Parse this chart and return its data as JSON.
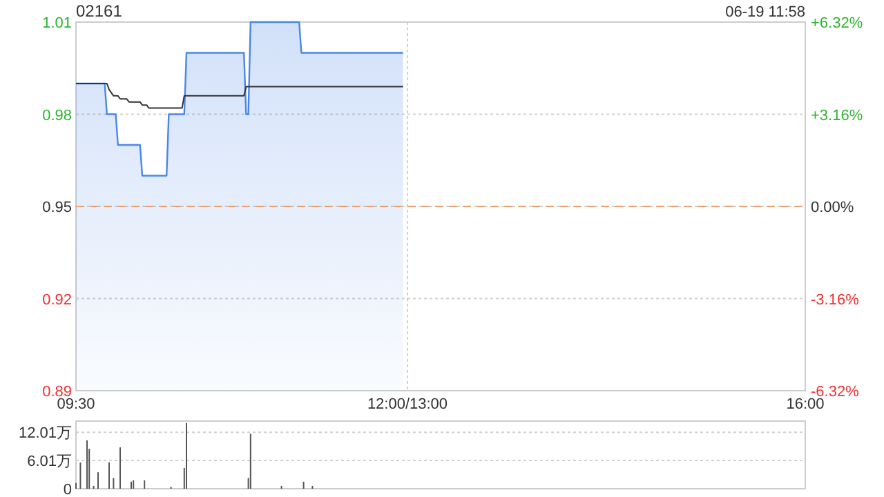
{
  "chart_data": [
    {
      "type": "area",
      "title": "02161",
      "subtitle": "06-19 11:58",
      "categories": [
        "09:30",
        null,
        null,
        null,
        null,
        null,
        null,
        null,
        null,
        null,
        null,
        null,
        null,
        null,
        null,
        null,
        null,
        null,
        null,
        null,
        null,
        null,
        null,
        null,
        null,
        null,
        null,
        null,
        null,
        null,
        null,
        null,
        null,
        null,
        null,
        null,
        null,
        null,
        null,
        null,
        null,
        null,
        null,
        null,
        null,
        null,
        null,
        null,
        null,
        null,
        null,
        null,
        null,
        null,
        null,
        null,
        null,
        null,
        null,
        null,
        null,
        null,
        null,
        null,
        null,
        null,
        null,
        null,
        null,
        null,
        null,
        null,
        null,
        null,
        null,
        null,
        null,
        null,
        null,
        null,
        null,
        null,
        null,
        null,
        null,
        null,
        null,
        null,
        null,
        null,
        null,
        null,
        null,
        null,
        null,
        null,
        null,
        null,
        null,
        null,
        null,
        null,
        null,
        null,
        null,
        null,
        null,
        null,
        null,
        null,
        null,
        null,
        null,
        null,
        null,
        null,
        null,
        null,
        null,
        null,
        null,
        null,
        null,
        null,
        null,
        null,
        null,
        null,
        null,
        null,
        null,
        null,
        null,
        null,
        null,
        null,
        null,
        null,
        null,
        null,
        null,
        null,
        null,
        null,
        null,
        null,
        null,
        null,
        null,
        null,
        "12:00/13:00",
        null,
        null,
        null,
        null,
        null,
        null,
        null,
        null,
        null,
        null,
        null,
        null,
        null,
        null,
        null,
        null,
        null,
        null,
        null,
        null,
        null,
        null,
        null,
        null,
        null,
        null,
        null,
        null,
        null,
        null,
        null,
        null,
        null,
        null,
        null,
        null,
        null,
        null,
        null,
        null,
        null,
        null,
        null,
        null,
        null,
        null,
        null,
        null,
        null,
        null,
        null,
        null,
        null,
        null,
        null,
        null,
        null,
        null,
        null,
        null,
        null,
        null,
        null,
        null,
        null,
        null,
        null,
        null,
        null,
        null,
        null,
        null,
        null,
        null,
        null,
        null,
        null,
        null,
        null,
        null,
        null,
        null,
        null,
        null,
        null,
        null,
        null,
        null,
        null,
        null,
        null,
        null,
        null,
        null,
        null,
        null,
        null,
        null,
        null,
        null,
        null,
        null,
        null,
        null,
        null,
        null,
        null,
        null,
        null,
        null,
        null,
        null,
        null,
        null,
        null,
        null,
        null,
        null,
        null,
        null,
        null,
        null,
        null,
        null,
        null,
        null,
        null,
        null,
        null,
        null,
        null,
        null,
        null,
        null,
        null,
        null,
        null,
        null,
        null,
        null,
        null,
        null,
        null,
        null,
        null,
        null,
        null,
        null,
        null,
        null,
        null,
        null,
        null,
        null,
        null,
        null,
        null,
        null,
        null,
        null,
        null,
        null,
        null,
        null,
        null,
        null,
        null,
        null,
        null,
        null,
        null,
        null,
        null,
        null,
        null,
        null,
        null,
        null,
        null,
        "16:00"
      ],
      "ylim": [
        0.89,
        1.01
      ],
      "yticks": [
        0.89,
        0.92,
        0.95,
        0.98,
        1.01
      ],
      "y2lim": [
        -6.32,
        6.32
      ],
      "y2ticks": [
        {
          "value": -6.32,
          "label": "-6.32%"
        },
        {
          "value": -3.16,
          "label": "-3.16%"
        },
        {
          "value": 0,
          "label": "0.00%"
        },
        {
          "value": 3.16,
          "label": "+3.16%"
        },
        {
          "value": 6.32,
          "label": "+6.32%"
        }
      ],
      "grid": true,
      "ref_lines": [
        {
          "axis": "y",
          "value": 0.95,
          "label": null,
          "color": "#f0a070",
          "line_style": "dashed"
        }
      ],
      "series": [
        {
          "color": "#4a86e8",
          "values": [
            0.99,
            0.99,
            0.99,
            0.99,
            0.99,
            0.99,
            0.99,
            0.99,
            0.99,
            0.99,
            0.99,
            0.99,
            0.99,
            0.99,
            0.98,
            0.98,
            0.98,
            0.98,
            0.98,
            0.97,
            0.97,
            0.97,
            0.97,
            0.97,
            0.97,
            0.97,
            0.97,
            0.97,
            0.97,
            0.97,
            0.96,
            0.96,
            0.96,
            0.96,
            0.96,
            0.96,
            0.96,
            0.96,
            0.96,
            0.96,
            0.96,
            0.96,
            0.98,
            0.98,
            0.98,
            0.98,
            0.98,
            0.98,
            0.98,
            0.98,
            1,
            1,
            1,
            1,
            1,
            1,
            1,
            1,
            1,
            1,
            1,
            1,
            1,
            1,
            1,
            1,
            1,
            1,
            1,
            1,
            1,
            1,
            1,
            1,
            1,
            1,
            1,
            0.98,
            0.98,
            1.01,
            1.01,
            1.01,
            1.01,
            1.01,
            1.01,
            1.01,
            1.01,
            1.01,
            1.01,
            1.01,
            1.01,
            1.01,
            1.01,
            1.01,
            1.01,
            1.01,
            1.01,
            1.01,
            1.01,
            1.01,
            1.01,
            1.01,
            1,
            1,
            1,
            1,
            1,
            1,
            1,
            1,
            1,
            1,
            1,
            1,
            1,
            1,
            1,
            1,
            1,
            1,
            1,
            1,
            1,
            1,
            1,
            1,
            1,
            1,
            1,
            1,
            1,
            1,
            1,
            1,
            1,
            1,
            1,
            1,
            1,
            1,
            1,
            1,
            1,
            1,
            1,
            1,
            1,
            1,
            1,
            null,
            null,
            null,
            null,
            null,
            null,
            null,
            null,
            null,
            null,
            null,
            null,
            null,
            null,
            null,
            null,
            null,
            null,
            null,
            null,
            null,
            null,
            null,
            null,
            null,
            null,
            null,
            null,
            null,
            null,
            null,
            null,
            null,
            null,
            null,
            null,
            null,
            null,
            null,
            null,
            null,
            null,
            null,
            null,
            null,
            null,
            null,
            null,
            null,
            null,
            null,
            null,
            null,
            null,
            null,
            null,
            null,
            null,
            null,
            null,
            null,
            null,
            null,
            null,
            null,
            null,
            null,
            null,
            null,
            null,
            null,
            null,
            null,
            null,
            null,
            null,
            null,
            null,
            null,
            null,
            null,
            null,
            null,
            null,
            null,
            null,
            null,
            null,
            null,
            null,
            null,
            null,
            null,
            null,
            null,
            null,
            null,
            null,
            null,
            null,
            null,
            null,
            null,
            null,
            null,
            null,
            null,
            null,
            null,
            null,
            null,
            null,
            null,
            null,
            null,
            null,
            null,
            null,
            null,
            null,
            null,
            null,
            null,
            null,
            null,
            null,
            null,
            null,
            null,
            null,
            null,
            null,
            null,
            null,
            null,
            null,
            null,
            null,
            null,
            null,
            null,
            null,
            null,
            null,
            null,
            null,
            null,
            null,
            null,
            null,
            null,
            null,
            null,
            null,
            null,
            null,
            null,
            null,
            null,
            null,
            null,
            null,
            null,
            null,
            null,
            null,
            null,
            null,
            null,
            null,
            null,
            null,
            null,
            null,
            null,
            null,
            null,
            null,
            null,
            null,
            null,
            null
          ]
        },
        {
          "type": "line",
          "color": "#333333",
          "values": [
            0.99,
            0.99,
            0.99,
            0.99,
            0.99,
            0.99,
            0.99,
            0.99,
            0.99,
            0.99,
            0.99,
            0.99,
            0.99,
            0.99,
            0.99,
            0.988,
            0.987,
            0.986,
            0.986,
            0.986,
            0.985,
            0.985,
            0.985,
            0.985,
            0.984,
            0.984,
            0.984,
            0.984,
            0.984,
            0.984,
            0.983,
            0.983,
            0.983,
            0.982,
            0.982,
            0.982,
            0.982,
            0.982,
            0.982,
            0.982,
            0.982,
            0.982,
            0.982,
            0.982,
            0.982,
            0.982,
            0.982,
            0.982,
            0.982,
            0.986,
            0.986,
            0.986,
            0.986,
            0.986,
            0.986,
            0.986,
            0.986,
            0.986,
            0.986,
            0.986,
            0.986,
            0.986,
            0.986,
            0.986,
            0.986,
            0.986,
            0.986,
            0.986,
            0.986,
            0.986,
            0.986,
            0.986,
            0.986,
            0.986,
            0.986,
            0.986,
            0.986,
            0.989,
            0.989,
            0.989,
            0.989,
            0.989,
            0.989,
            0.989,
            0.989,
            0.989,
            0.989,
            0.989,
            0.989,
            0.989,
            0.989,
            0.989,
            0.989,
            0.989,
            0.989,
            0.989,
            0.989,
            0.989,
            0.989,
            0.989,
            0.989,
            0.989,
            0.989,
            0.989,
            0.989,
            0.989,
            0.989,
            0.989,
            0.989,
            0.989,
            0.989,
            0.989,
            0.989,
            0.989,
            0.989,
            0.989,
            0.989,
            0.989,
            0.989,
            0.989,
            0.989,
            0.989,
            0.989,
            0.989,
            0.989,
            0.989,
            0.989,
            0.989,
            0.989,
            0.989,
            0.989,
            0.989,
            0.989,
            0.989,
            0.989,
            0.989,
            0.989,
            0.989,
            0.989,
            0.989,
            0.989,
            0.989,
            0.989,
            0.989,
            0.989,
            0.989,
            0.989,
            0.989,
            0.989,
            null,
            null,
            null,
            null,
            null,
            null,
            null,
            null,
            null,
            null,
            null,
            null,
            null,
            null,
            null,
            null,
            null,
            null,
            null,
            null,
            null,
            null,
            null,
            null,
            null,
            null,
            null,
            null,
            null,
            null,
            null,
            null,
            null,
            null,
            null,
            null,
            null,
            null,
            null,
            null,
            null,
            null,
            null,
            null,
            null,
            null,
            null,
            null,
            null,
            null,
            null,
            null,
            null,
            null,
            null,
            null,
            null,
            null,
            null,
            null,
            null,
            null,
            null,
            null,
            null,
            null,
            null,
            null,
            null,
            null,
            null,
            null,
            null,
            null,
            null,
            null,
            null,
            null,
            null,
            null,
            null,
            null,
            null,
            null,
            null,
            null,
            null,
            null,
            null,
            null,
            null,
            null,
            null,
            null,
            null,
            null,
            null,
            null,
            null,
            null,
            null,
            null,
            null,
            null,
            null,
            null,
            null,
            null,
            null,
            null,
            null,
            null,
            null,
            null,
            null,
            null,
            null,
            null,
            null,
            null,
            null,
            null,
            null,
            null,
            null,
            null,
            null,
            null,
            null,
            null,
            null,
            null,
            null,
            null,
            null,
            null,
            null,
            null,
            null,
            null,
            null,
            null,
            null,
            null,
            null,
            null,
            null,
            null,
            null,
            null,
            null,
            null,
            null,
            null,
            null,
            null,
            null,
            null,
            null,
            null,
            null,
            null,
            null,
            null,
            null,
            null,
            null,
            null,
            null,
            null,
            null,
            null,
            null,
            null,
            null,
            null,
            null,
            null,
            null,
            null,
            null,
            null
          ]
        }
      ]
    },
    {
      "type": "bar",
      "tick_labels": "y",
      "grid": true,
      "categories": [
        null,
        null,
        null,
        null,
        null,
        null,
        null,
        null,
        null,
        null,
        null,
        null,
        null,
        null,
        null,
        null,
        null,
        null,
        null,
        null,
        null,
        null,
        null,
        null,
        null,
        null,
        null,
        null,
        null,
        null,
        null,
        null,
        null,
        null,
        null,
        null,
        null,
        null,
        null,
        null,
        null,
        null,
        null,
        null,
        null,
        null,
        null,
        null,
        null,
        null,
        null,
        null,
        null,
        null,
        null,
        null,
        null,
        null,
        null,
        null,
        null,
        null,
        null,
        null,
        null,
        null,
        null,
        null,
        null,
        null,
        null,
        null,
        null,
        null,
        null,
        null,
        null,
        null,
        null,
        null,
        null,
        null,
        null,
        null,
        null,
        null,
        null,
        null,
        null,
        null,
        null,
        null,
        null,
        null,
        null,
        null,
        null,
        null,
        null,
        null,
        null,
        null,
        null,
        null,
        null,
        null,
        null,
        null,
        null,
        null,
        null,
        null,
        null,
        null,
        null,
        null,
        null,
        null,
        null,
        null,
        null,
        null,
        null,
        null,
        null,
        null,
        null,
        null,
        null,
        null,
        null,
        null,
        null,
        null,
        null,
        null,
        null,
        null,
        null,
        null,
        null,
        null,
        null,
        null,
        null,
        null,
        null,
        null,
        null,
        null,
        null,
        null,
        null,
        null,
        null,
        null,
        null,
        null,
        null,
        null,
        null,
        null,
        null,
        null,
        null,
        null,
        null,
        null,
        null,
        null,
        null,
        null,
        null,
        null,
        null,
        null,
        null,
        null,
        null,
        null,
        null,
        null,
        null,
        null,
        null,
        null,
        null,
        null,
        null,
        null,
        null,
        null,
        null,
        null,
        null,
        null,
        null,
        null,
        null,
        null,
        null,
        null,
        null,
        null,
        null,
        null,
        null,
        null,
        null,
        null,
        null,
        null,
        null,
        null,
        null,
        null,
        null,
        null,
        null,
        null,
        null,
        null,
        null,
        null,
        null,
        null,
        null,
        null,
        null,
        null,
        null,
        null,
        null,
        null,
        null,
        null,
        null,
        null,
        null,
        null,
        null,
        null,
        null,
        null,
        null,
        null,
        null,
        null,
        null,
        null,
        null,
        null,
        null,
        null,
        null,
        null,
        null,
        null,
        null,
        null,
        null,
        null,
        null,
        null,
        null,
        null,
        null,
        null,
        null,
        null,
        null,
        null,
        null,
        null,
        null,
        null,
        null,
        null,
        null,
        null,
        null,
        null,
        null,
        null,
        null,
        null,
        null,
        null,
        null,
        null,
        null,
        null,
        null,
        null,
        null,
        null,
        null,
        null,
        null,
        null,
        null,
        null,
        null,
        null,
        null,
        null,
        null,
        null,
        null,
        null,
        null,
        null,
        null,
        null,
        null,
        null,
        null,
        null,
        null,
        null,
        null,
        null,
        null,
        null,
        null,
        null,
        null,
        null,
        null,
        null,
        null
      ],
      "ylim": [
        0,
        14.4
      ],
      "yticks": [
        0,
        {
          "value": 6.01,
          "label": "6.01万"
        },
        {
          "value": 12.01,
          "label": "12.01万"
        }
      ],
      "series": [
        {
          "color": "#555555",
          "values": [
            1.2,
            null,
            5.6,
            null,
            null,
            10.3,
            8.5,
            null,
            0.6,
            null,
            3.5,
            null,
            null,
            null,
            null,
            5.6,
            null,
            2.3,
            null,
            null,
            8.8,
            null,
            null,
            null,
            null,
            1.5,
            1.8,
            null,
            null,
            null,
            null,
            1.8,
            null,
            null,
            null,
            null,
            null,
            null,
            null,
            null,
            null,
            null,
            null,
            0.4,
            null,
            null,
            null,
            null,
            null,
            4.4,
            14.0,
            null,
            null,
            null,
            null,
            null,
            null,
            null,
            null,
            null,
            null,
            null,
            null,
            null,
            null,
            null,
            null,
            null,
            null,
            null,
            null,
            null,
            null,
            null,
            null,
            null,
            null,
            null,
            2.3,
            11.7,
            null,
            null,
            null,
            null,
            null,
            null,
            null,
            null,
            null,
            null,
            null,
            null,
            null,
            0.6,
            null,
            null,
            null,
            null,
            null,
            null,
            null,
            null,
            null,
            1.5,
            null,
            null,
            null,
            0.6,
            null,
            null,
            null,
            null,
            null,
            null,
            null,
            null,
            null,
            null,
            null,
            null,
            null,
            null,
            null,
            null,
            null,
            null,
            null,
            null,
            null,
            null,
            null,
            null,
            null,
            null,
            null,
            null,
            null,
            null,
            null,
            null,
            null,
            null,
            null,
            null,
            null,
            null,
            null,
            null,
            null,
            null,
            null,
            null,
            null,
            null,
            null,
            null,
            null,
            null,
            null,
            null,
            null,
            null,
            null,
            null,
            null,
            null,
            null,
            null,
            null,
            null,
            null,
            null,
            null,
            null,
            null,
            null,
            null,
            null,
            null,
            null,
            null,
            null,
            null,
            null,
            null,
            null,
            null,
            null,
            null,
            null,
            null,
            null,
            null,
            null,
            null,
            null,
            null,
            null,
            null,
            null,
            null,
            null,
            null,
            null,
            null,
            null,
            null,
            null,
            null,
            null,
            null,
            null,
            null,
            null,
            null,
            null,
            null,
            null,
            null,
            null,
            null,
            null,
            null,
            null,
            null,
            null,
            null,
            null,
            null,
            null,
            null,
            null,
            null,
            null,
            null,
            null,
            null,
            null,
            null,
            null,
            null,
            null,
            null,
            null,
            null,
            null,
            null,
            null,
            null,
            null,
            null,
            null,
            null,
            null,
            null,
            null,
            null,
            null,
            null,
            null,
            null,
            null,
            null,
            null,
            null,
            null,
            null,
            null,
            null,
            null,
            null,
            null,
            null,
            null,
            null,
            null,
            null,
            null,
            null,
            null,
            null,
            null,
            null,
            null,
            null,
            null,
            null,
            null,
            null,
            null,
            null,
            null,
            null,
            null,
            null,
            null,
            null,
            null,
            null,
            null,
            null,
            null,
            null,
            null,
            null,
            null,
            null,
            null,
            null,
            null,
            null,
            null,
            null,
            null,
            null,
            null,
            null,
            null,
            null,
            null,
            null,
            null,
            null,
            null,
            null,
            null,
            null,
            null,
            null,
            null,
            null
          ]
        }
      ]
    }
  ]
}
